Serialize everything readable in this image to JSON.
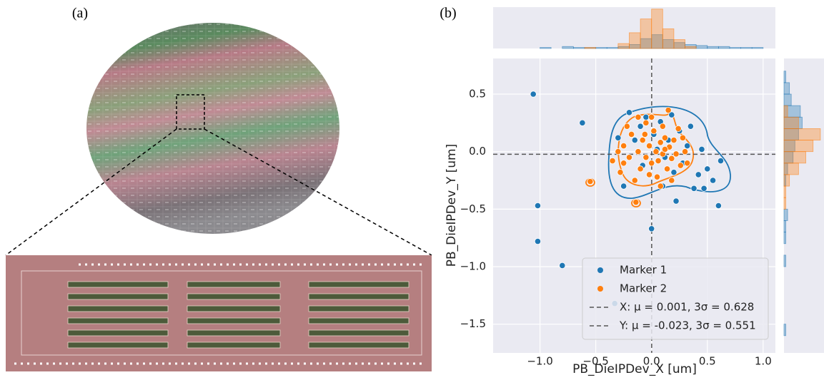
{
  "panel_labels": [
    "(a)",
    "(b)"
  ],
  "chart_data": {
    "type": "scatter",
    "x_label": "PB_DieIPDev_X [um]",
    "y_label": "PB_DieIPDev_Y [um]",
    "xlim": [
      -1.42,
      1.11
    ],
    "ylim": [
      -1.75,
      0.81
    ],
    "xticks": [
      {
        "value": -1,
        "label": "−1.0"
      },
      {
        "value": -0.5,
        "label": "−0.5"
      },
      {
        "value": 0,
        "label": "0.0"
      },
      0.5,
      {
        "value": 1,
        "label": "1.0"
      }
    ],
    "yticks": [
      {
        "value": -1.5,
        "label": "−1.5"
      },
      {
        "value": -1,
        "label": "−1.0"
      },
      {
        "value": -0.5,
        "label": "−0.5"
      },
      {
        "value": 0,
        "label": "0.0"
      },
      0.5
    ],
    "grid": true,
    "legend": "lower right",
    "series": [
      {
        "name": "Marker 1",
        "color": "#1f77b4",
        "x": [
          -1.06,
          -0.62,
          -1.02,
          -1.02,
          -0.8,
          -0.33,
          0.0,
          0.6,
          0.22,
          0.5,
          0.42,
          0.38,
          0.55,
          0.62,
          0.47,
          0.32,
          0.25,
          0.18,
          -0.2,
          -0.05,
          0.08,
          -0.15,
          0.05,
          0.12,
          -0.08,
          0.28,
          -0.25,
          0.1,
          0.35,
          -0.3,
          0.02,
          0.2,
          -0.1,
          0.45,
          0.15
        ],
        "values": [
          0.5,
          0.25,
          -0.47,
          -0.78,
          -0.99,
          -1.32,
          -0.67,
          -0.47,
          -0.43,
          -0.15,
          -0.2,
          -0.32,
          -0.25,
          -0.08,
          -0.32,
          0.05,
          0.18,
          0.32,
          0.34,
          0.3,
          0.26,
          0.1,
          0.02,
          -0.05,
          -0.12,
          -0.1,
          -0.3,
          -0.3,
          0.22,
          0.12,
          0.15,
          -0.18,
          0.22,
          0.02,
          0.1
        ]
      },
      {
        "name": "Marker 2",
        "color": "#ff7f0e",
        "x": [
          -0.55,
          -0.14,
          0.15,
          -0.25,
          -0.2,
          -0.18,
          -0.12,
          -0.1,
          -0.08,
          -0.05,
          -0.02,
          0.0,
          0.02,
          0.04,
          0.06,
          0.08,
          0.1,
          0.12,
          0.14,
          0.16,
          0.18,
          0.2,
          0.22,
          0.24,
          0.26,
          0.3,
          -0.28,
          -0.3,
          -0.22,
          -0.15,
          -0.05,
          0.05,
          0.1,
          0.18,
          -0.12,
          -0.02,
          0.28,
          0.32,
          0.0,
          -0.25,
          0.08,
          -0.35,
          0.12,
          -0.06
        ],
        "values": [
          -0.26,
          -0.44,
          0.36,
          0.05,
          -0.05,
          0.15,
          0.0,
          -0.15,
          0.1,
          -0.05,
          0.05,
          -0.1,
          0.18,
          0.0,
          -0.08,
          0.08,
          -0.02,
          0.12,
          -0.15,
          0.04,
          -0.06,
          0.1,
          -0.02,
          0.2,
          -0.12,
          0.0,
          -0.18,
          0.0,
          0.22,
          -0.25,
          0.25,
          -0.22,
          0.22,
          -0.25,
          0.3,
          -0.2,
          0.12,
          -0.1,
          0.3,
          -0.1,
          -0.3,
          -0.08,
          0.02,
          0.15
        ]
      }
    ],
    "reference_lines": [
      {
        "name": "X: μ = 0.001, 3σ = 0.628",
        "axis": "x",
        "value": 0.001
      },
      {
        "name": "Y: μ = -0.023, 3σ = 0.551",
        "axis": "y",
        "value": -0.023
      }
    ],
    "marginal_x": {
      "type": "histogram",
      "ylim": [
        0,
        42
      ],
      "bins": [
        -1.1,
        -1.0,
        -0.9,
        -0.8,
        -0.7,
        -0.6,
        -0.5,
        -0.4,
        -0.3,
        -0.2,
        -0.1,
        0.0,
        0.1,
        0.2,
        0.3,
        0.4,
        0.5,
        0.6,
        0.7,
        0.8,
        0.9,
        1.0,
        1.1
      ],
      "series": [
        {
          "name": "Marker 1",
          "values": [
            0,
            1,
            0,
            2,
            1,
            1,
            1,
            1,
            2,
            4,
            10,
            14,
            9,
            6,
            4,
            3,
            2,
            2,
            1,
            1,
            1,
            0
          ]
        },
        {
          "name": "Marker 2",
          "values": [
            0,
            0,
            0,
            0,
            0,
            1,
            0,
            0,
            5,
            16,
            30,
            40,
            20,
            9,
            2,
            0,
            0,
            0,
            0,
            0,
            0,
            0
          ]
        }
      ]
    },
    "marginal_y": {
      "type": "histogram",
      "xlim": [
        0,
        22
      ],
      "bins": [
        -1.7,
        -1.6,
        -1.5,
        -1.4,
        -1.3,
        -1.2,
        -1.1,
        -1.0,
        -0.9,
        -0.8,
        -0.7,
        -0.6,
        -0.5,
        -0.4,
        -0.3,
        -0.2,
        -0.1,
        0.0,
        0.1,
        0.2,
        0.3,
        0.4,
        0.5,
        0.6,
        0.7,
        0.8
      ],
      "series": [
        {
          "name": "Marker 1",
          "values": [
            0,
            1,
            0,
            0,
            0,
            0,
            0,
            1,
            0,
            1,
            1,
            2,
            0,
            0,
            1,
            2,
            5,
            6,
            8,
            10,
            9,
            4,
            3,
            1,
            0
          ]
        },
        {
          "name": "Marker 2",
          "values": [
            0,
            0,
            0,
            0,
            0,
            0,
            0,
            0,
            0,
            0,
            0,
            0,
            1,
            1,
            3,
            8,
            12,
            16,
            20,
            8,
            2,
            0,
            0,
            0,
            0
          ]
        }
      ]
    }
  }
}
